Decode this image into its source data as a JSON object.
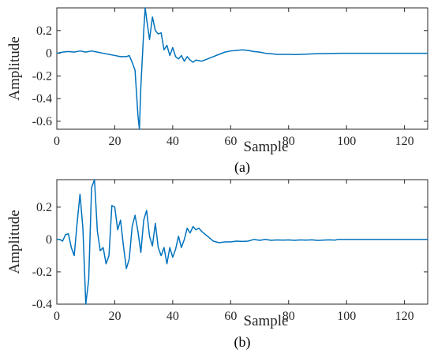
{
  "chart_data": [
    {
      "id": "a",
      "type": "line",
      "caption": "(a)",
      "title": "",
      "xlabel": "Sample",
      "ylabel": "Amplitude",
      "xlim": [
        0,
        128
      ],
      "ylim": [
        -0.67,
        0.4
      ],
      "xticks": [
        0,
        20,
        40,
        60,
        80,
        100,
        120
      ],
      "yticks": [
        0.2,
        0,
        -0.2,
        -0.4,
        -0.6
      ],
      "ytick_labels": [
        "0.2",
        "0",
        "-0.2",
        "-0.4",
        "-0.6"
      ],
      "color": "#0072BD",
      "series": [
        {
          "x": [
            0,
            2,
            4,
            6,
            8,
            10,
            12,
            14,
            16,
            18,
            20,
            22,
            24,
            25,
            26,
            27,
            27.5,
            28,
            28.5,
            29,
            29.5,
            30,
            30.5,
            31,
            32,
            33,
            34,
            35,
            36,
            37,
            38,
            39,
            40,
            41,
            42,
            43,
            44,
            45,
            46,
            47,
            48,
            50,
            52,
            54,
            56,
            58,
            60,
            62,
            64,
            66,
            68,
            70,
            72,
            74,
            76,
            78,
            80,
            82,
            84,
            86,
            88,
            90,
            92,
            94,
            96,
            98,
            100,
            104,
            108,
            112,
            116,
            120,
            124,
            128
          ],
          "y": [
            0.0,
            0.01,
            0.015,
            0.01,
            0.02,
            0.01,
            0.02,
            0.01,
            0.0,
            -0.01,
            -0.02,
            -0.03,
            -0.03,
            -0.02,
            -0.08,
            -0.15,
            -0.35,
            -0.55,
            -0.67,
            -0.3,
            -0.05,
            0.2,
            0.4,
            0.3,
            0.12,
            0.32,
            0.2,
            0.17,
            0.18,
            0.03,
            0.07,
            -0.02,
            0.05,
            -0.03,
            -0.05,
            -0.02,
            -0.07,
            -0.03,
            -0.06,
            -0.08,
            -0.06,
            -0.07,
            -0.05,
            -0.03,
            -0.01,
            0.01,
            0.02,
            0.025,
            0.03,
            0.025,
            0.015,
            0.01,
            0.0,
            -0.005,
            -0.01,
            -0.01,
            -0.01,
            -0.012,
            -0.01,
            -0.008,
            -0.006,
            -0.004,
            -0.003,
            -0.002,
            -0.001,
            0.0,
            0.0,
            0.0,
            0.0,
            0.0,
            0.0,
            0.0,
            0.0,
            0.0
          ]
        }
      ]
    },
    {
      "id": "b",
      "type": "line",
      "caption": "(b)",
      "title": "",
      "xlabel": "Sample",
      "ylabel": "Amplitude",
      "xlim": [
        0,
        128
      ],
      "ylim": [
        -0.4,
        0.37
      ],
      "xticks": [
        0,
        20,
        40,
        60,
        80,
        100,
        120
      ],
      "yticks": [
        0.2,
        0,
        -0.2,
        -0.4
      ],
      "ytick_labels": [
        "0.2",
        "0",
        "-0.2",
        "-0.4"
      ],
      "color": "#0072BD",
      "series": [
        {
          "x": [
            0,
            1,
            2,
            3,
            4,
            5,
            6,
            7,
            8,
            9,
            10,
            11,
            12,
            13,
            14,
            15,
            16,
            17,
            18,
            19,
            20,
            21,
            22,
            23,
            24,
            25,
            26,
            27,
            28,
            29,
            30,
            31,
            32,
            33,
            34,
            35,
            36,
            37,
            38,
            39,
            40,
            41,
            42,
            43,
            44,
            45,
            46,
            47,
            48,
            49,
            50,
            52,
            54,
            56,
            58,
            60,
            62,
            64,
            66,
            68,
            70,
            72,
            74,
            76,
            78,
            80,
            82,
            84,
            86,
            88,
            90,
            92,
            94,
            96,
            97,
            98,
            100,
            104,
            108,
            112,
            116,
            120,
            124,
            128
          ],
          "y": [
            0.0,
            0.0,
            -0.01,
            0.03,
            0.035,
            -0.05,
            -0.1,
            0.1,
            0.28,
            0.07,
            -0.4,
            -0.25,
            0.32,
            0.37,
            0.05,
            -0.07,
            -0.05,
            -0.15,
            -0.1,
            0.21,
            0.2,
            0.06,
            0.12,
            -0.04,
            -0.18,
            -0.12,
            0.08,
            0.15,
            0.05,
            -0.08,
            0.12,
            0.18,
            0.02,
            -0.04,
            0.1,
            -0.05,
            -0.1,
            -0.05,
            -0.15,
            -0.05,
            -0.11,
            -0.06,
            0.02,
            -0.05,
            0.0,
            0.07,
            0.04,
            0.08,
            0.06,
            0.07,
            0.05,
            0.02,
            -0.01,
            -0.02,
            -0.015,
            -0.015,
            -0.01,
            -0.012,
            -0.01,
            0.0,
            -0.005,
            0.0,
            -0.005,
            -0.003,
            -0.004,
            -0.003,
            -0.005,
            -0.003,
            -0.004,
            -0.002,
            -0.006,
            -0.004,
            -0.002,
            -0.004,
            0.0,
            0.0,
            0.0,
            0.0,
            0.0,
            0.0,
            0.0,
            0.0,
            0.0,
            0.0
          ]
        }
      ]
    }
  ]
}
